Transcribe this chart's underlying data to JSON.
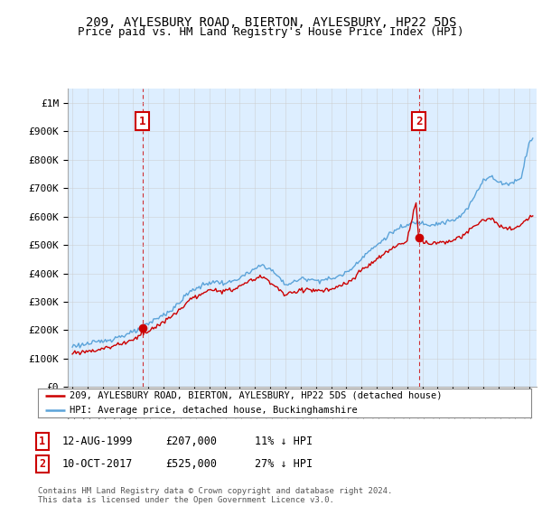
{
  "title": "209, AYLESBURY ROAD, BIERTON, AYLESBURY, HP22 5DS",
  "subtitle": "Price paid vs. HM Land Registry's House Price Index (HPI)",
  "title_fontsize": 10,
  "subtitle_fontsize": 9,
  "ylabel_ticks": [
    "£0",
    "£100K",
    "£200K",
    "£300K",
    "£400K",
    "£500K",
    "£600K",
    "£700K",
    "£800K",
    "£900K",
    "£1M"
  ],
  "ytick_values": [
    0,
    100000,
    200000,
    300000,
    400000,
    500000,
    600000,
    700000,
    800000,
    900000,
    1000000
  ],
  "ylim": [
    0,
    1050000
  ],
  "xlim_start": 1994.7,
  "xlim_end": 2025.5,
  "hpi_color": "#5ba3d9",
  "price_color": "#cc0000",
  "fill_color": "#ddeeff",
  "marker1_date": 1999.615,
  "marker1_price": 207000,
  "marker1_label": "1",
  "marker1_date_str": "12-AUG-1999",
  "marker1_price_str": "£207,000",
  "marker1_hpi_str": "11% ↓ HPI",
  "marker2_date": 2017.78,
  "marker2_price": 525000,
  "marker2_label": "2",
  "marker2_date_str": "10-OCT-2017",
  "marker2_price_str": "£525,000",
  "marker2_hpi_str": "27% ↓ HPI",
  "legend_line1": "209, AYLESBURY ROAD, BIERTON, AYLESBURY, HP22 5DS (detached house)",
  "legend_line2": "HPI: Average price, detached house, Buckinghamshire",
  "footer": "Contains HM Land Registry data © Crown copyright and database right 2024.\nThis data is licensed under the Open Government Licence v3.0.",
  "background_color": "#ffffff",
  "grid_color": "#cccccc",
  "label_box_color": "#cc0000"
}
